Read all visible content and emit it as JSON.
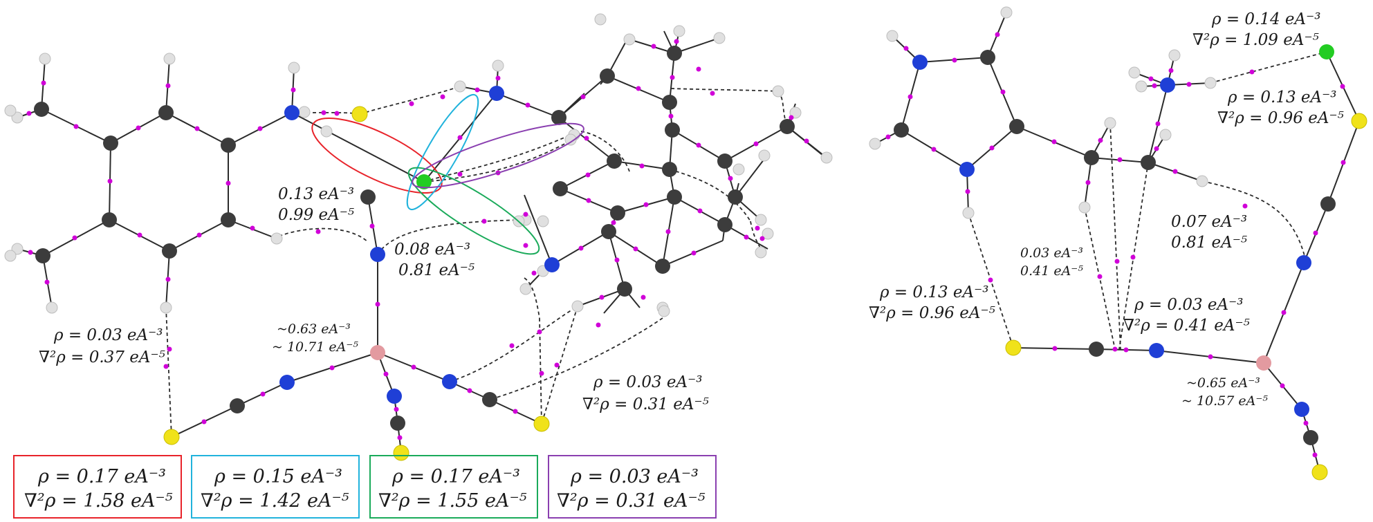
{
  "colors": {
    "carbon": "#3c3c3c",
    "nitrogen": "#1f3fd6",
    "sulfur": "#f0e21a",
    "chlorine": "#22cc22",
    "hydrogen": "#dcdcdc",
    "metal": "#e39aa0",
    "bond_critical_point": "#d000d8",
    "box_red": "#e8232a",
    "box_cyan": "#21b3dc",
    "box_green": "#1aaa5a",
    "box_purple": "#8a3fb0"
  },
  "atom_types": [
    "C",
    "N",
    "S",
    "Cl",
    "H",
    "metal",
    "BCP"
  ],
  "left": {
    "annot": {
      "a_l1": "0.13 eA⁻³",
      "a_l2": "0.99 eA⁻⁵",
      "b_l1": "0.08 eA⁻³",
      "b_l2": "0.81 eA⁻⁵",
      "c_l1": "~0.63 eA⁻³",
      "c_l2": "~ 10.71 eA⁻⁵",
      "d_l1": "ρ = 0.03 eA⁻³",
      "d_l2": "∇²ρ = 0.37 eA⁻⁵",
      "e_l1": "ρ = 0.03 eA⁻³",
      "e_l2": "∇²ρ = 0.31 eA⁻⁵"
    },
    "boxes": {
      "red_l1": "ρ = 0.17 eA⁻³",
      "red_l2": "∇²ρ = 1.58 eA⁻⁵",
      "cyan_l1": "ρ = 0.15 eA⁻³",
      "cyan_l2": "∇²ρ = 1.42 eA⁻⁵",
      "green_l1": "ρ = 0.17 eA⁻³",
      "green_l2": "∇²ρ = 1.55 eA⁻⁵",
      "purple_l1": "ρ = 0.03 eA⁻³",
      "purple_l2": "∇²ρ = 0.31 eA⁻⁵"
    }
  },
  "right": {
    "annot": {
      "a_l1": "ρ = 0.14 eA⁻³",
      "a_l2": "∇²ρ = 1.09 eA⁻⁵",
      "b_l1": "ρ = 0.13 eA⁻³",
      "b_l2": "∇²ρ = 0.96 eA⁻⁵",
      "c_l1": "0.07 eA⁻³",
      "c_l2": "0.81 eA⁻⁵",
      "d_l1": "0.03 eA⁻³",
      "d_l2": "0.41 eA⁻⁵",
      "e_l1": "ρ = 0.13 eA⁻³",
      "e_l2": "∇²ρ = 0.96 eA⁻⁵",
      "f_l1": "ρ = 0.03 eA⁻³",
      "f_l2": "∇²ρ = 0.41 eA⁻⁵",
      "g_l1": "~0.65 eA⁻³",
      "g_l2": "~ 10.57 eA⁻⁵"
    }
  }
}
